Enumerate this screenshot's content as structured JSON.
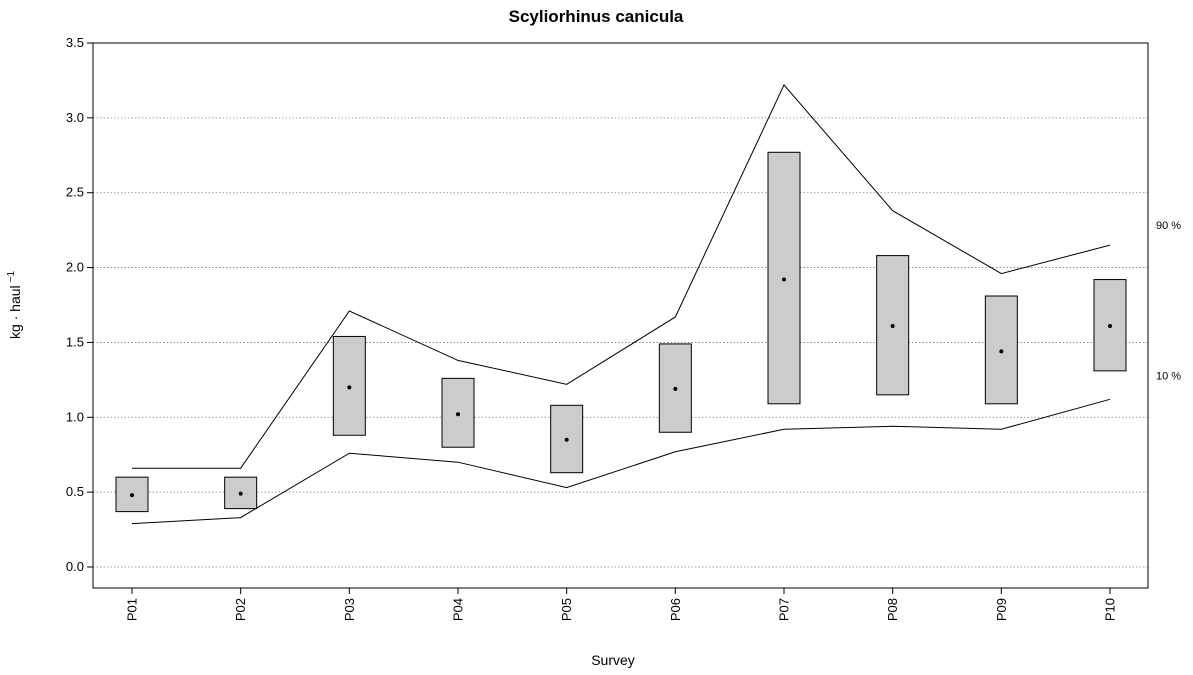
{
  "chart_data": {
    "type": "box",
    "title": "Scyliorhinus canicula",
    "xlabel": "Survey",
    "ylabel": "kg · haul",
    "ylabel_exponent": "−1",
    "categories": [
      "P01",
      "P02",
      "P03",
      "P04",
      "P05",
      "P06",
      "P07",
      "P08",
      "P09",
      "P10"
    ],
    "ylim": [
      0.0,
      3.5
    ],
    "yticks": [
      "0.0",
      "0.5",
      "1.0",
      "1.5",
      "2.0",
      "2.5",
      "3.0",
      "3.5"
    ],
    "grid": "horizontal dotted",
    "boxes": [
      {
        "survey": "P01",
        "low": 0.37,
        "high": 0.6,
        "mean": 0.48
      },
      {
        "survey": "P02",
        "low": 0.39,
        "high": 0.6,
        "mean": 0.49
      },
      {
        "survey": "P03",
        "low": 0.88,
        "high": 1.54,
        "mean": 1.2
      },
      {
        "survey": "P04",
        "low": 0.8,
        "high": 1.26,
        "mean": 1.02
      },
      {
        "survey": "P05",
        "low": 0.63,
        "high": 1.08,
        "mean": 0.85
      },
      {
        "survey": "P06",
        "low": 0.9,
        "high": 1.49,
        "mean": 1.19
      },
      {
        "survey": "P07",
        "low": 1.09,
        "high": 2.77,
        "mean": 1.92
      },
      {
        "survey": "P08",
        "low": 1.15,
        "high": 2.08,
        "mean": 1.61
      },
      {
        "survey": "P09",
        "low": 1.09,
        "high": 1.81,
        "mean": 1.44
      },
      {
        "survey": "P10",
        "low": 1.31,
        "high": 1.92,
        "mean": 1.61
      }
    ],
    "series": [
      {
        "name": "90 %",
        "values": [
          0.66,
          0.66,
          1.71,
          1.38,
          1.22,
          1.67,
          3.22,
          2.38,
          1.96,
          2.15
        ]
      },
      {
        "name": "10 %",
        "values": [
          0.29,
          0.33,
          0.76,
          0.7,
          0.53,
          0.77,
          0.92,
          0.94,
          0.92,
          1.12
        ]
      }
    ],
    "colors": {
      "box_fill": "#cccccc",
      "line": "#000000",
      "grid": "#7f7f7f"
    }
  }
}
